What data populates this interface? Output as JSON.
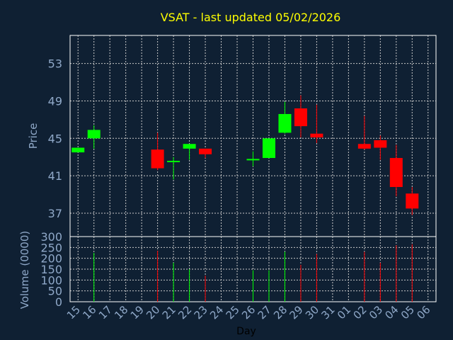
{
  "chart_data": {
    "type": "candlestick",
    "title": "VSAT - last updated 05/02/2026",
    "xlabel": "Day",
    "ylabel": "Price",
    "volume_label": "Volume (0000)",
    "ylim": [
      34.5,
      56.0
    ],
    "volume_ylim": [
      0,
      300
    ],
    "price_ticks": [
      37,
      41,
      45,
      49,
      53
    ],
    "volume_ticks": [
      0,
      50,
      100,
      150,
      200,
      250,
      300
    ],
    "grid": true,
    "colors": {
      "background": "#0f2033",
      "grid": "#c8c8c8",
      "axis_text": "#8fa8c8",
      "title": "#ffff00",
      "up": "#00ff00",
      "down": "#ff0000"
    },
    "categories": [
      "15",
      "16",
      "17",
      "18",
      "19",
      "20",
      "21",
      "22",
      "23",
      "24",
      "25",
      "26",
      "27",
      "28",
      "29",
      "30",
      "31",
      "01",
      "02",
      "03",
      "04",
      "05",
      "06"
    ],
    "candles": [
      {
        "x": "15",
        "open": 43.5,
        "high": 44.0,
        "low": 43.5,
        "close": 44.0,
        "volume": 0
      },
      {
        "x": "16",
        "open": 45.0,
        "high": 46.4,
        "low": 43.9,
        "close": 45.9,
        "volume": 225
      },
      {
        "x": "20",
        "open": 43.8,
        "high": 45.6,
        "low": 41.6,
        "close": 41.8,
        "volume": 235
      },
      {
        "x": "21",
        "open": 42.5,
        "high": 43.0,
        "low": 40.6,
        "close": 42.6,
        "volume": 180
      },
      {
        "x": "22",
        "open": 43.9,
        "high": 44.3,
        "low": 42.7,
        "close": 44.4,
        "volume": 150
      },
      {
        "x": "23",
        "open": 43.9,
        "high": 43.9,
        "low": 42.9,
        "close": 43.3,
        "volume": 120
      },
      {
        "x": "26",
        "open": 42.7,
        "high": 43.6,
        "low": 42.0,
        "close": 42.8,
        "volume": 145
      },
      {
        "x": "27",
        "open": 42.9,
        "high": 45.0,
        "low": 42.9,
        "close": 45.0,
        "volume": 145
      },
      {
        "x": "28",
        "open": 45.6,
        "high": 48.9,
        "low": 45.5,
        "close": 47.6,
        "volume": 230
      },
      {
        "x": "29",
        "open": 48.2,
        "high": 49.6,
        "low": 45.1,
        "close": 46.3,
        "volume": 170
      },
      {
        "x": "30",
        "open": 45.5,
        "high": 48.6,
        "low": 44.5,
        "close": 45.1,
        "volume": 220
      },
      {
        "x": "02",
        "open": 44.4,
        "high": 47.4,
        "low": 43.8,
        "close": 43.9,
        "volume": 230
      },
      {
        "x": "03",
        "open": 44.8,
        "high": 45.3,
        "low": 42.7,
        "close": 44.0,
        "volume": 180
      },
      {
        "x": "04",
        "open": 42.9,
        "high": 44.3,
        "low": 38.8,
        "close": 39.8,
        "volume": 260
      },
      {
        "x": "05",
        "open": 39.1,
        "high": 39.8,
        "low": 36.8,
        "close": 37.5,
        "volume": 265
      }
    ]
  }
}
